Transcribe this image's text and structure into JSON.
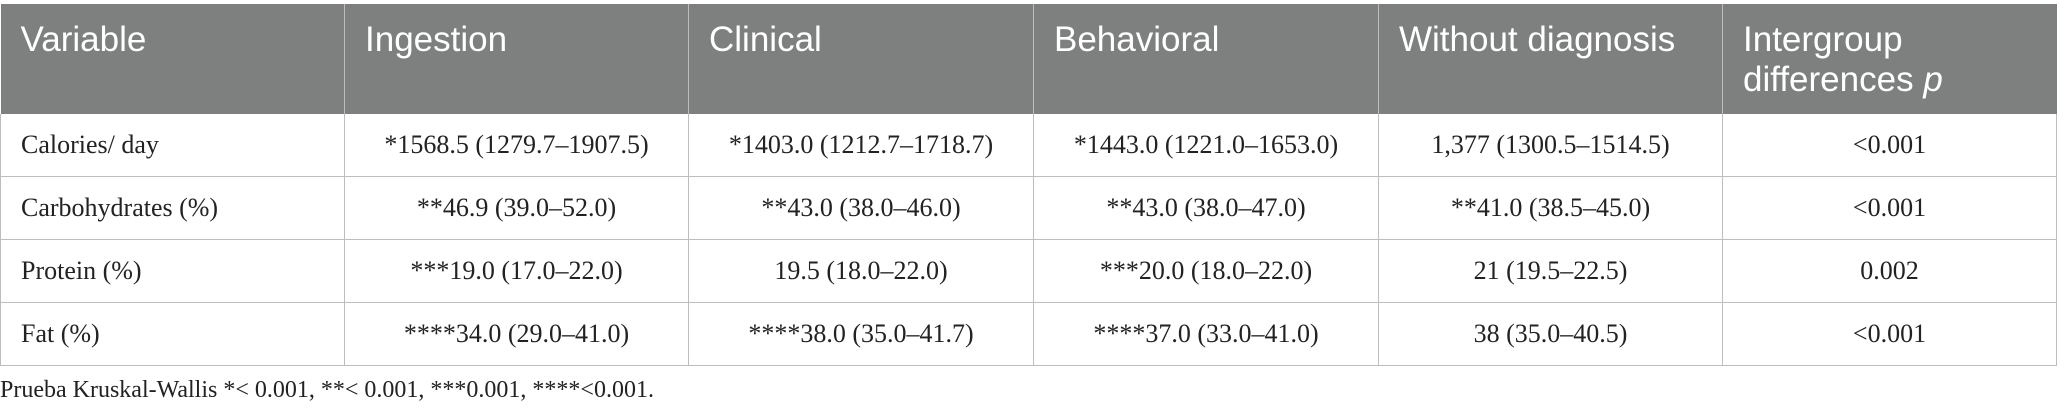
{
  "table": {
    "headers": [
      "Variable",
      "Ingestion",
      "Clinical",
      "Behavioral",
      "Without diagnosis",
      "Intergroup differences"
    ],
    "header_last_suffix": "p",
    "rows": [
      [
        "Calories/ day",
        "*1568.5 (1279.7–1907.5)",
        "*1403.0 (1212.7–1718.7)",
        "*1443.0 (1221.0–1653.0)",
        "1,377 (1300.5–1514.5)",
        "<0.001"
      ],
      [
        "Carbohydrates (%)",
        "**46.9 (39.0–52.0)",
        "**43.0 (38.0–46.0)",
        "**43.0 (38.0–47.0)",
        "**41.0 (38.5–45.0)",
        "<0.001"
      ],
      [
        "Protein (%)",
        "***19.0 (17.0–22.0)",
        "19.5 (18.0–22.0)",
        "***20.0 (18.0–22.0)",
        "21 (19.5–22.5)",
        "0.002"
      ],
      [
        "Fat (%)",
        "****34.0 (29.0–41.0)",
        "****38.0 (35.0–41.7)",
        "****37.0 (33.0–41.0)",
        "38 (35.0–40.5)",
        "<0.001"
      ]
    ]
  },
  "footnote": "Prueba Kruskal-Wallis *< 0.001, **< 0.001, ***0.001, ****<0.001.",
  "colors": {
    "header_bg": "#7e807f",
    "header_text": "#ffffff",
    "grid": "#bdbdbd"
  }
}
